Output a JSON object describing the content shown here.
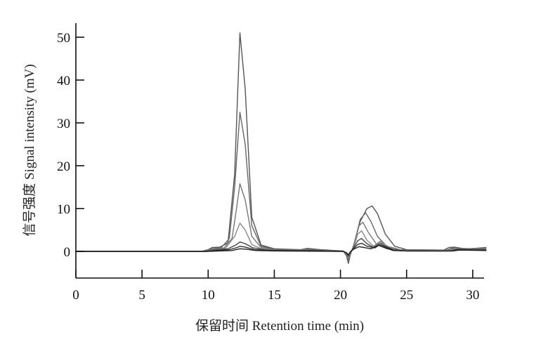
{
  "chart_data": {
    "type": "line",
    "title": "",
    "xlabel": "保留时间 Retention time (min)",
    "ylabel": "信号强度 Signal intensity (mV)",
    "xlim": [
      0,
      31
    ],
    "ylim": [
      -6,
      55
    ],
    "x_ticks": [
      "0",
      "5",
      "10",
      "15",
      "20",
      "25",
      "30"
    ],
    "y_ticks": [
      "0",
      "10",
      "20",
      "30",
      "40",
      "50"
    ],
    "grid": false,
    "legend": "none",
    "series": [
      {
        "color": "#555555",
        "points": [
          [
            0,
            0
          ],
          [
            9.5,
            0
          ],
          [
            10.0,
            0.4
          ],
          [
            10.3,
            0.9
          ],
          [
            10.9,
            1.0
          ],
          [
            11.5,
            2
          ],
          [
            12.0,
            18
          ],
          [
            12.4,
            51
          ],
          [
            12.8,
            38
          ],
          [
            13.3,
            8
          ],
          [
            14.0,
            1.5
          ],
          [
            15,
            0.6
          ],
          [
            17,
            0.4
          ],
          [
            17.5,
            0.7
          ],
          [
            18.5,
            0.4
          ],
          [
            20.2,
            0.1
          ],
          [
            20.45,
            -1.0
          ],
          [
            20.6,
            -2.8
          ],
          [
            20.75,
            -0.8
          ],
          [
            21.0,
            1.5
          ],
          [
            21.5,
            7
          ],
          [
            22.0,
            10
          ],
          [
            22.4,
            10.6
          ],
          [
            22.8,
            8.8
          ],
          [
            23.4,
            4
          ],
          [
            24.1,
            1.2
          ],
          [
            25,
            0.4
          ],
          [
            27.8,
            0.3
          ],
          [
            28.2,
            0.9
          ],
          [
            28.6,
            1.0
          ],
          [
            29.2,
            0.7
          ],
          [
            29.8,
            0.6
          ],
          [
            30.6,
            0.8
          ],
          [
            31,
            0.9
          ]
        ]
      },
      {
        "color": "#666666",
        "points": [
          [
            0,
            0
          ],
          [
            9.5,
            0
          ],
          [
            10.1,
            0.5
          ],
          [
            11.0,
            0.9
          ],
          [
            11.6,
            3
          ],
          [
            12.0,
            15
          ],
          [
            12.4,
            32.5
          ],
          [
            12.8,
            25
          ],
          [
            13.3,
            6
          ],
          [
            14.0,
            1.2
          ],
          [
            15,
            0.5
          ],
          [
            17,
            0.3
          ],
          [
            17.5,
            0.6
          ],
          [
            18.5,
            0.3
          ],
          [
            20.2,
            0.1
          ],
          [
            20.45,
            -0.8
          ],
          [
            20.6,
            -2.3
          ],
          [
            20.75,
            -0.6
          ],
          [
            21.0,
            1.3
          ],
          [
            21.5,
            7.5
          ],
          [
            21.9,
            9
          ],
          [
            22.3,
            7
          ],
          [
            22.8,
            3.5
          ],
          [
            23.5,
            1.2
          ],
          [
            24.5,
            0.4
          ],
          [
            28.0,
            0.3
          ],
          [
            28.5,
            0.8
          ],
          [
            29.2,
            0.6
          ],
          [
            30.5,
            0.7
          ],
          [
            31,
            0.8
          ]
        ]
      },
      {
        "color": "#777777",
        "points": [
          [
            0,
            0
          ],
          [
            9.6,
            0
          ],
          [
            10.2,
            0.4
          ],
          [
            11.2,
            0.8
          ],
          [
            11.8,
            3
          ],
          [
            12.1,
            9
          ],
          [
            12.4,
            15.8
          ],
          [
            12.8,
            12
          ],
          [
            13.3,
            3.5
          ],
          [
            14.0,
            0.9
          ],
          [
            15,
            0.4
          ],
          [
            17,
            0.3
          ],
          [
            17.5,
            0.5
          ],
          [
            18.5,
            0.2
          ],
          [
            20.2,
            0.1
          ],
          [
            20.45,
            -0.6
          ],
          [
            20.6,
            -1.8
          ],
          [
            20.75,
            -0.4
          ],
          [
            21.0,
            1.2
          ],
          [
            21.4,
            6
          ],
          [
            21.7,
            6.8
          ],
          [
            22.1,
            4.5
          ],
          [
            22.7,
            1.8
          ],
          [
            23.5,
            0.6
          ],
          [
            25,
            0.2
          ],
          [
            28.1,
            0.2
          ],
          [
            28.6,
            0.7
          ],
          [
            29.3,
            0.5
          ],
          [
            31,
            0.6
          ]
        ]
      },
      {
        "color": "#888888",
        "points": [
          [
            0,
            0
          ],
          [
            9.7,
            0
          ],
          [
            10.3,
            0.3
          ],
          [
            11.3,
            0.7
          ],
          [
            12.0,
            3.5
          ],
          [
            12.4,
            6.6
          ],
          [
            12.8,
            5
          ],
          [
            13.3,
            1.6
          ],
          [
            14.0,
            0.6
          ],
          [
            15,
            0.3
          ],
          [
            17,
            0.2
          ],
          [
            17.5,
            0.4
          ],
          [
            18.5,
            0.2
          ],
          [
            20.2,
            0.0
          ],
          [
            20.45,
            -0.5
          ],
          [
            20.6,
            -1.4
          ],
          [
            20.75,
            -0.3
          ],
          [
            21.0,
            1.0
          ],
          [
            21.3,
            4
          ],
          [
            21.6,
            4.8
          ],
          [
            22.0,
            2.6
          ],
          [
            22.5,
            1.2
          ],
          [
            23.0,
            2.4
          ],
          [
            23.4,
            1.5
          ],
          [
            24.0,
            0.5
          ],
          [
            25,
            0.2
          ],
          [
            28.2,
            0.2
          ],
          [
            28.7,
            0.6
          ],
          [
            31,
            0.5
          ]
        ]
      },
      {
        "color": "#444444",
        "points": [
          [
            0,
            0
          ],
          [
            9.8,
            0
          ],
          [
            10.4,
            0.3
          ],
          [
            11.5,
            0.6
          ],
          [
            12.1,
            1.5
          ],
          [
            12.4,
            2.2
          ],
          [
            12.8,
            1.8
          ],
          [
            13.4,
            0.8
          ],
          [
            14.5,
            0.3
          ],
          [
            17,
            0.2
          ],
          [
            17.6,
            0.3
          ],
          [
            20.2,
            0.0
          ],
          [
            20.45,
            -0.4
          ],
          [
            20.6,
            -1.1
          ],
          [
            20.75,
            -0.2
          ],
          [
            21.0,
            0.8
          ],
          [
            21.3,
            2.5
          ],
          [
            21.6,
            3.0
          ],
          [
            22.0,
            1.8
          ],
          [
            22.5,
            0.9
          ],
          [
            23.0,
            2.0
          ],
          [
            23.4,
            1.2
          ],
          [
            24.0,
            0.4
          ],
          [
            25,
            0.1
          ],
          [
            28.3,
            0.1
          ],
          [
            28.8,
            0.5
          ],
          [
            31,
            0.4
          ]
        ]
      },
      {
        "color": "#333333",
        "points": [
          [
            0,
            0
          ],
          [
            9.9,
            0
          ],
          [
            10.5,
            0.2
          ],
          [
            11.6,
            0.4
          ],
          [
            12.2,
            0.9
          ],
          [
            12.4,
            1.2
          ],
          [
            12.8,
            1.0
          ],
          [
            13.5,
            0.4
          ],
          [
            15,
            0.2
          ],
          [
            20.2,
            0.0
          ],
          [
            20.45,
            -0.3
          ],
          [
            20.6,
            -0.9
          ],
          [
            20.75,
            -0.1
          ],
          [
            21.0,
            0.6
          ],
          [
            21.3,
            1.6
          ],
          [
            21.6,
            1.9
          ],
          [
            22.0,
            1.2
          ],
          [
            22.6,
            0.8
          ],
          [
            23.0,
            1.6
          ],
          [
            23.4,
            1.0
          ],
          [
            24.0,
            0.3
          ],
          [
            25,
            0.1
          ],
          [
            28.4,
            0.1
          ],
          [
            28.9,
            0.4
          ],
          [
            31,
            0.3
          ]
        ]
      },
      {
        "color": "#222222",
        "points": [
          [
            0,
            0
          ],
          [
            10.0,
            0
          ],
          [
            11.8,
            0.2
          ],
          [
            12.4,
            0.6
          ],
          [
            12.9,
            0.5
          ],
          [
            13.6,
            0.2
          ],
          [
            15,
            0.1
          ],
          [
            20.2,
            0.0
          ],
          [
            20.45,
            -0.3
          ],
          [
            20.6,
            -0.8
          ],
          [
            20.75,
            -0.1
          ],
          [
            21.0,
            0.5
          ],
          [
            21.4,
            1.1
          ],
          [
            21.8,
            0.9
          ],
          [
            22.3,
            0.6
          ],
          [
            22.9,
            1.4
          ],
          [
            23.3,
            0.9
          ],
          [
            24.0,
            0.2
          ],
          [
            25,
            0.1
          ],
          [
            28.5,
            0.1
          ],
          [
            29.0,
            0.3
          ],
          [
            31,
            0.2
          ]
        ]
      }
    ]
  }
}
